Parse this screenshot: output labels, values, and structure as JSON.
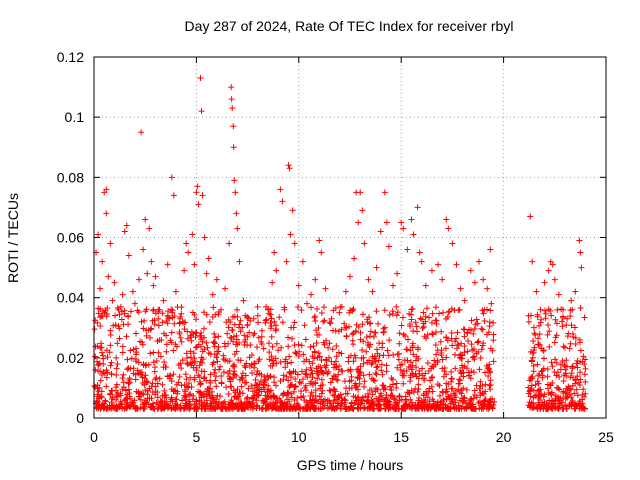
{
  "chart_data": {
    "type": "scatter",
    "title": "Day 287 of 2024, Rate Of TEC Index for receiver rbyl",
    "xlabel": "GPS time / hours",
    "ylabel": "ROTI / TECUs",
    "xlim": [
      0,
      25
    ],
    "ylim": [
      0,
      0.12
    ],
    "xticks": [
      0,
      5,
      10,
      15,
      20,
      25
    ],
    "xtick_labels": [
      "0",
      "5",
      "10",
      "15",
      "20",
      "25"
    ],
    "yticks": [
      0,
      0.02,
      0.04,
      0.06,
      0.08,
      0.1,
      0.12
    ],
    "ytick_labels": [
      "0",
      "0.02",
      "0.04",
      "0.06",
      "0.08",
      "0.1",
      "0.12"
    ],
    "grid": true,
    "marker": "plus",
    "color": "#ff0000",
    "series": [
      {
        "name": "ROTI",
        "points": [
          [
            0.1,
            0.055
          ],
          [
            0.2,
            0.061
          ],
          [
            0.3,
            0.043
          ],
          [
            0.4,
            0.052
          ],
          [
            0.5,
            0.075
          ],
          [
            0.6,
            0.076
          ],
          [
            0.6,
            0.068
          ],
          [
            0.7,
            0.047
          ],
          [
            0.8,
            0.058
          ],
          [
            0.9,
            0.039
          ],
          [
            1.0,
            0.045
          ],
          [
            1.2,
            0.036
          ],
          [
            1.4,
            0.041
          ],
          [
            1.5,
            0.062
          ],
          [
            1.6,
            0.064
          ],
          [
            1.7,
            0.054
          ],
          [
            1.9,
            0.042
          ],
          [
            2.0,
            0.038
          ],
          [
            2.2,
            0.046
          ],
          [
            2.3,
            0.095
          ],
          [
            2.4,
            0.056
          ],
          [
            2.5,
            0.066
          ],
          [
            2.6,
            0.048
          ],
          [
            2.7,
            0.063
          ],
          [
            2.8,
            0.052
          ],
          [
            2.9,
            0.044
          ],
          [
            3.0,
            0.047
          ],
          [
            3.2,
            0.036
          ],
          [
            3.4,
            0.039
          ],
          [
            3.6,
            0.051
          ],
          [
            3.8,
            0.08
          ],
          [
            3.9,
            0.074
          ],
          [
            4.0,
            0.042
          ],
          [
            4.2,
            0.033
          ],
          [
            4.4,
            0.049
          ],
          [
            4.5,
            0.058
          ],
          [
            4.6,
            0.055
          ],
          [
            4.8,
            0.061
          ],
          [
            4.9,
            0.051
          ],
          [
            5.0,
            0.075
          ],
          [
            5.05,
            0.077
          ],
          [
            5.1,
            0.071
          ],
          [
            5.2,
            0.113
          ],
          [
            5.25,
            0.102
          ],
          [
            5.3,
            0.074
          ],
          [
            5.4,
            0.06
          ],
          [
            5.5,
            0.048
          ],
          [
            5.6,
            0.053
          ],
          [
            5.8,
            0.041
          ],
          [
            6.0,
            0.046
          ],
          [
            6.2,
            0.036
          ],
          [
            6.4,
            0.043
          ],
          [
            6.6,
            0.058
          ],
          [
            6.7,
            0.11
          ],
          [
            6.72,
            0.106
          ],
          [
            6.75,
            0.103
          ],
          [
            6.8,
            0.097
          ],
          [
            6.82,
            0.09
          ],
          [
            6.85,
            0.079
          ],
          [
            6.9,
            0.075
          ],
          [
            6.95,
            0.068
          ],
          [
            7.0,
            0.063
          ],
          [
            7.1,
            0.052
          ],
          [
            7.3,
            0.039
          ],
          [
            7.5,
            0.031
          ],
          [
            7.8,
            0.033
          ],
          [
            8.0,
            0.034
          ],
          [
            8.2,
            0.029
          ],
          [
            8.5,
            0.036
          ],
          [
            8.7,
            0.045
          ],
          [
            8.8,
            0.055
          ],
          [
            8.9,
            0.049
          ],
          [
            9.1,
            0.076
          ],
          [
            9.2,
            0.072
          ],
          [
            9.4,
            0.052
          ],
          [
            9.5,
            0.084
          ],
          [
            9.55,
            0.083
          ],
          [
            9.6,
            0.061
          ],
          [
            9.7,
            0.069
          ],
          [
            9.8,
            0.058
          ],
          [
            10.0,
            0.044
          ],
          [
            10.2,
            0.052
          ],
          [
            10.4,
            0.038
          ],
          [
            10.6,
            0.041
          ],
          [
            10.8,
            0.046
          ],
          [
            11.0,
            0.059
          ],
          [
            11.1,
            0.055
          ],
          [
            11.3,
            0.043
          ],
          [
            11.6,
            0.033
          ],
          [
            11.8,
            0.029
          ],
          [
            12.1,
            0.037
          ],
          [
            12.3,
            0.042
          ],
          [
            12.5,
            0.047
          ],
          [
            12.7,
            0.053
          ],
          [
            12.8,
            0.075
          ],
          [
            12.9,
            0.065
          ],
          [
            13.0,
            0.075
          ],
          [
            13.1,
            0.069
          ],
          [
            13.2,
            0.058
          ],
          [
            13.4,
            0.046
          ],
          [
            13.6,
            0.042
          ],
          [
            13.8,
            0.05
          ],
          [
            14.0,
            0.062
          ],
          [
            14.2,
            0.075
          ],
          [
            14.3,
            0.065
          ],
          [
            14.4,
            0.057
          ],
          [
            14.6,
            0.044
          ],
          [
            14.8,
            0.048
          ],
          [
            15.0,
            0.065
          ],
          [
            15.1,
            0.063
          ],
          [
            15.3,
            0.056
          ],
          [
            15.5,
            0.066
          ],
          [
            15.6,
            0.061
          ],
          [
            15.8,
            0.07
          ],
          [
            15.9,
            0.055
          ],
          [
            16.0,
            0.052
          ],
          [
            16.2,
            0.044
          ],
          [
            16.5,
            0.049
          ],
          [
            16.8,
            0.051
          ],
          [
            17.0,
            0.046
          ],
          [
            17.2,
            0.066
          ],
          [
            17.3,
            0.063
          ],
          [
            17.5,
            0.058
          ],
          [
            17.7,
            0.051
          ],
          [
            17.9,
            0.043
          ],
          [
            18.1,
            0.039
          ],
          [
            18.4,
            0.049
          ],
          [
            18.6,
            0.045
          ],
          [
            18.8,
            0.052
          ],
          [
            19.0,
            0.046
          ],
          [
            19.2,
            0.043
          ],
          [
            19.35,
            0.056
          ],
          [
            19.4,
            0.038
          ],
          [
            21.3,
            0.067
          ],
          [
            21.4,
            0.052
          ],
          [
            21.6,
            0.042
          ],
          [
            21.8,
            0.036
          ],
          [
            22.0,
            0.045
          ],
          [
            22.2,
            0.049
          ],
          [
            22.3,
            0.052
          ],
          [
            22.4,
            0.051
          ],
          [
            22.5,
            0.046
          ],
          [
            22.7,
            0.041
          ],
          [
            22.9,
            0.036
          ],
          [
            23.1,
            0.033
          ],
          [
            23.3,
            0.039
          ],
          [
            23.5,
            0.042
          ],
          [
            23.7,
            0.059
          ],
          [
            23.75,
            0.055
          ],
          [
            23.8,
            0.05
          ]
        ]
      }
    ]
  }
}
